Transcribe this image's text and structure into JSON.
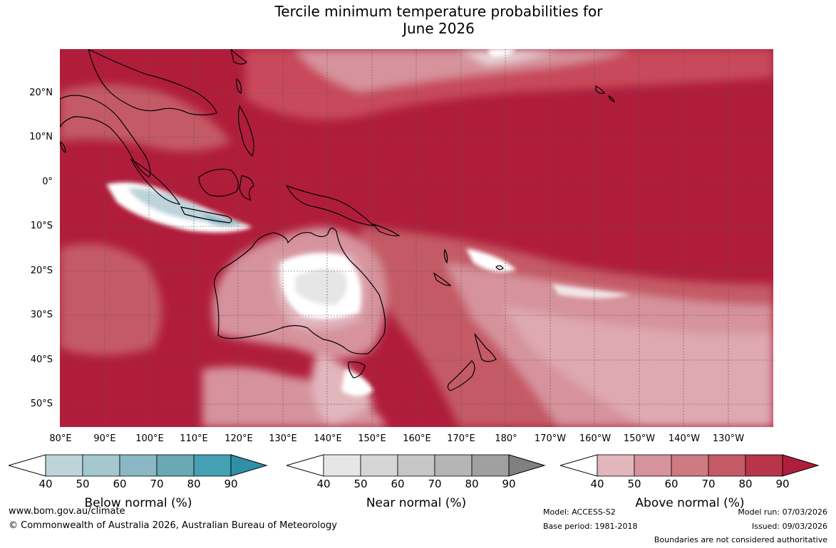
{
  "title": {
    "line1": "Tercile minimum temperature probabilities for",
    "line2": "June 2026"
  },
  "lat_labels": [
    "20°N",
    "10°N",
    "0°",
    "10°S",
    "20°S",
    "30°S",
    "40°S",
    "50°S"
  ],
  "lon_labels": [
    "80°E",
    "90°E",
    "100°E",
    "110°E",
    "120°E",
    "130°E",
    "140°E",
    "150°E",
    "160°E",
    "170°E",
    "180°",
    "170°W",
    "160°W",
    "150°W",
    "140°W",
    "130°W"
  ],
  "colorbars": [
    {
      "name": "Below normal (%)",
      "ticks": [
        "40",
        "50",
        "60",
        "70",
        "80",
        "90"
      ],
      "colors": [
        "#ffffff",
        "#bdd4db",
        "#a5c8cf",
        "#8ab7c3",
        "#68a9b4",
        "#44a0b2",
        "#2e8fa6"
      ]
    },
    {
      "name": "Near normal (%)",
      "ticks": [
        "40",
        "50",
        "60",
        "70",
        "80",
        "90"
      ],
      "colors": [
        "#ffffff",
        "#e6e6e6",
        "#d6d6d6",
        "#c6c6c6",
        "#b5b5b5",
        "#a0a0a0",
        "#808080"
      ]
    },
    {
      "name": "Above normal (%)",
      "ticks": [
        "40",
        "50",
        "60",
        "70",
        "80",
        "90"
      ],
      "colors": [
        "#ffffff",
        "#e2b6bd",
        "#d6939c",
        "#cd7a83",
        "#c45a65",
        "#b8344a",
        "#b01d3b"
      ]
    }
  ],
  "footer": {
    "website": "www.bom.gov.au/climate",
    "copyright": "© Commonwealth of Australia 2026, Australian Bureau of Meteorology",
    "model": "Model: ACCESS-S2",
    "base_period": "Base period: 1981-2018",
    "model_run": "Model run: 07/03/2026",
    "issued": "Issued: 09/03/2026",
    "disclaimer": "Boundaries are not considered authoritative"
  }
}
